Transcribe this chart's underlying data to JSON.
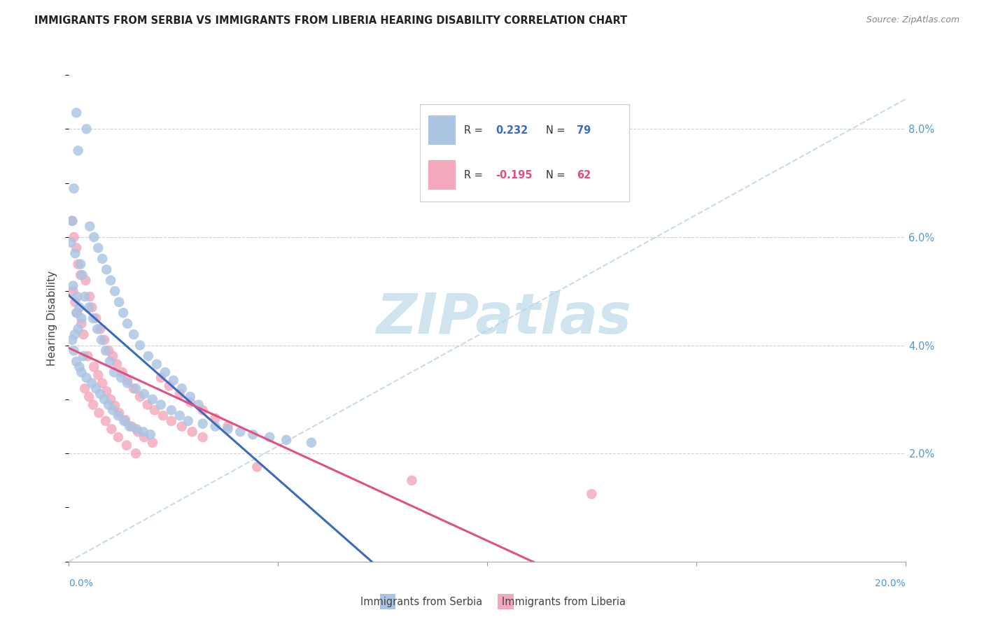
{
  "title": "IMMIGRANTS FROM SERBIA VS IMMIGRANTS FROM LIBERIA HEARING DISABILITY CORRELATION CHART",
  "source": "Source: ZipAtlas.com",
  "ylabel": "Hearing Disability",
  "serbia_R": 0.232,
  "serbia_N": 79,
  "liberia_R": -0.195,
  "liberia_N": 62,
  "serbia_color": "#aac4e2",
  "liberia_color": "#f4a8bb",
  "serbia_line_color": "#3a6bbf",
  "liberia_line_color": "#e05080",
  "diagonal_color": "#b8d4e8",
  "grid_color": "#cccccc",
  "watermark": "ZIPatlas",
  "watermark_color": "#d0e4f0",
  "right_tick_color": "#5599cc",
  "xmin": 0.0,
  "xmax": 20.0,
  "ymin": 0.0,
  "ymax": 9.0,
  "serbia_x": [
    0.18,
    0.42,
    0.22,
    0.12,
    0.08,
    0.05,
    0.15,
    0.28,
    0.32,
    0.1,
    0.2,
    0.25,
    0.18,
    0.3,
    0.22,
    0.14,
    0.08,
    0.12,
    0.35,
    0.18,
    0.25,
    0.3,
    0.42,
    0.55,
    0.65,
    0.75,
    0.85,
    0.95,
    1.05,
    1.18,
    1.32,
    1.45,
    1.62,
    1.78,
    1.95,
    0.5,
    0.6,
    0.7,
    0.8,
    0.9,
    1.0,
    1.1,
    1.2,
    1.3,
    1.4,
    1.55,
    1.7,
    1.9,
    2.1,
    2.3,
    2.5,
    2.7,
    2.9,
    3.1,
    0.38,
    0.48,
    0.58,
    0.68,
    0.78,
    0.88,
    0.98,
    1.08,
    1.25,
    1.4,
    1.6,
    1.8,
    2.0,
    2.2,
    2.45,
    2.65,
    2.85,
    3.2,
    3.5,
    3.8,
    4.1,
    4.4,
    4.8,
    5.2,
    5.8
  ],
  "serbia_y": [
    8.3,
    8.0,
    7.6,
    6.9,
    6.3,
    5.9,
    5.7,
    5.5,
    5.3,
    5.1,
    4.9,
    4.7,
    4.6,
    4.5,
    4.3,
    4.2,
    4.1,
    3.9,
    3.8,
    3.7,
    3.6,
    3.5,
    3.4,
    3.3,
    3.2,
    3.1,
    3.0,
    2.9,
    2.8,
    2.7,
    2.6,
    2.5,
    2.45,
    2.4,
    2.35,
    6.2,
    6.0,
    5.8,
    5.6,
    5.4,
    5.2,
    5.0,
    4.8,
    4.6,
    4.4,
    4.2,
    4.0,
    3.8,
    3.65,
    3.5,
    3.35,
    3.2,
    3.05,
    2.9,
    4.9,
    4.7,
    4.5,
    4.3,
    4.1,
    3.9,
    3.7,
    3.5,
    3.4,
    3.3,
    3.2,
    3.1,
    3.0,
    2.9,
    2.8,
    2.7,
    2.6,
    2.55,
    2.5,
    2.45,
    2.4,
    2.35,
    2.3,
    2.25,
    2.2
  ],
  "liberia_x": [
    0.08,
    0.12,
    0.18,
    0.22,
    0.28,
    0.1,
    0.15,
    0.2,
    0.3,
    0.35,
    0.4,
    0.5,
    0.55,
    0.65,
    0.75,
    0.85,
    0.95,
    1.05,
    1.15,
    1.28,
    1.4,
    1.55,
    1.7,
    1.88,
    2.05,
    2.25,
    2.45,
    2.7,
    2.95,
    3.2,
    0.45,
    0.6,
    0.7,
    0.8,
    0.9,
    1.0,
    1.1,
    1.2,
    1.35,
    1.5,
    1.65,
    1.8,
    2.0,
    2.2,
    2.4,
    2.65,
    2.9,
    3.2,
    3.5,
    3.8,
    0.38,
    0.48,
    0.58,
    0.72,
    0.88,
    1.02,
    1.18,
    1.38,
    1.6,
    4.5,
    8.2,
    12.5
  ],
  "liberia_y": [
    6.3,
    6.0,
    5.8,
    5.5,
    5.3,
    5.0,
    4.8,
    4.6,
    4.4,
    4.2,
    5.2,
    4.9,
    4.7,
    4.5,
    4.3,
    4.1,
    3.9,
    3.8,
    3.65,
    3.5,
    3.35,
    3.2,
    3.05,
    2.9,
    2.8,
    2.7,
    2.6,
    2.5,
    2.4,
    2.3,
    3.8,
    3.6,
    3.45,
    3.3,
    3.15,
    3.0,
    2.88,
    2.75,
    2.62,
    2.5,
    2.4,
    2.3,
    2.2,
    3.4,
    3.25,
    3.1,
    2.95,
    2.8,
    2.65,
    2.5,
    3.2,
    3.05,
    2.9,
    2.75,
    2.6,
    2.45,
    2.3,
    2.15,
    2.0,
    1.75,
    1.5,
    1.25
  ]
}
